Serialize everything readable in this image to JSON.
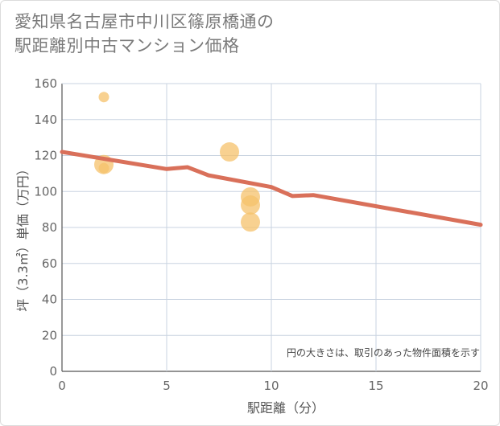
{
  "title_line1": "愛知県名古屋市中川区篠原橋通の",
  "title_line2": "駅距離別中古マンション価格",
  "chart_data": {
    "type": "scatter",
    "title": "愛知県名古屋市中川区篠原橋通の駅距離別中古マンション価格",
    "xlabel": "駅距離（分）",
    "ylabel": "坪（3.3㎡）単価（万円）",
    "xlim": [
      0,
      20
    ],
    "ylim": [
      0,
      160
    ],
    "x_ticks": [
      0,
      5,
      10,
      15,
      20
    ],
    "y_ticks": [
      0,
      20,
      40,
      60,
      80,
      100,
      120,
      140,
      160
    ],
    "grid": true,
    "note": "円の大きさは、取引のあった物件面積を示す",
    "bubble_color": "#f5c26b",
    "line_color": "#d9705a",
    "points": [
      {
        "x": 2,
        "y": 152.5,
        "size": 1
      },
      {
        "x": 2,
        "y": 115,
        "size": 3
      },
      {
        "x": 2,
        "y": 113,
        "size": 1
      },
      {
        "x": 8,
        "y": 122,
        "size": 3
      },
      {
        "x": 9,
        "y": 97,
        "size": 3
      },
      {
        "x": 9,
        "y": 92.5,
        "size": 3
      },
      {
        "x": 9,
        "y": 83,
        "size": 3
      }
    ],
    "trend_line": [
      {
        "x": 0,
        "y": 122
      },
      {
        "x": 5,
        "y": 112.5
      },
      {
        "x": 6,
        "y": 113.5
      },
      {
        "x": 7,
        "y": 109
      },
      {
        "x": 10,
        "y": 102.5
      },
      {
        "x": 11,
        "y": 97.5
      },
      {
        "x": 12,
        "y": 98
      },
      {
        "x": 20,
        "y": 81.5
      }
    ]
  }
}
